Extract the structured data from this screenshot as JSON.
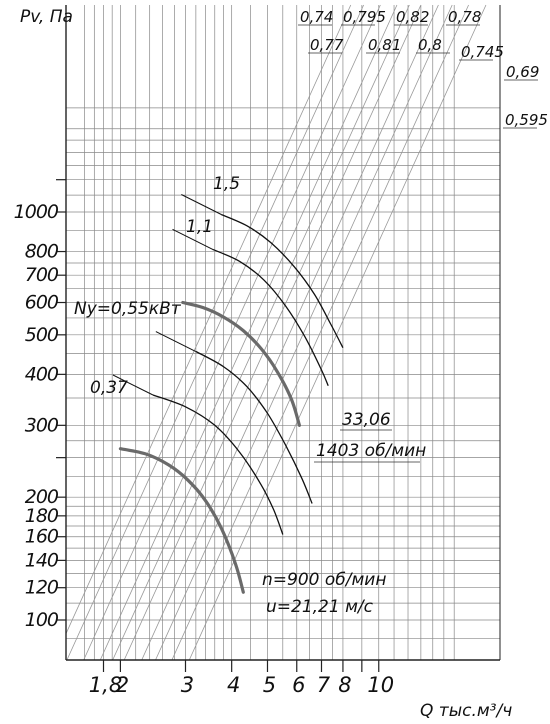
{
  "chart_data": {
    "type": "line",
    "title": "",
    "ylabel": "Pv, Па",
    "xlabel": "Q тыс.м³/ч",
    "x_scale": "log",
    "y_scale": "log",
    "xlim": [
      1.4,
      17
    ],
    "ylim": [
      74,
      2000
    ],
    "grid": true,
    "y_ticks": [
      {
        "value": 100,
        "label": "100"
      },
      {
        "value": 120,
        "label": "120"
      },
      {
        "value": 140,
        "label": "140"
      },
      {
        "value": 160,
        "label": "160"
      },
      {
        "value": 180,
        "label": "180"
      },
      {
        "value": 200,
        "label": "200"
      },
      {
        "value": 300,
        "label": "300"
      },
      {
        "value": 400,
        "label": "400"
      },
      {
        "value": 500,
        "label": "500"
      },
      {
        "value": 600,
        "label": "600"
      },
      {
        "value": 700,
        "label": "700"
      },
      {
        "value": 800,
        "label": "800"
      },
      {
        "value": 1000,
        "label": "1000"
      }
    ],
    "x_ticks": [
      {
        "value": 1.8,
        "label": "1,8"
      },
      {
        "value": 2,
        "label": "2"
      },
      {
        "value": 3,
        "label": "3"
      },
      {
        "value": 4,
        "label": "4"
      },
      {
        "value": 5,
        "label": "5"
      },
      {
        "value": 6,
        "label": "6"
      },
      {
        "value": 7,
        "label": "7"
      },
      {
        "value": 8,
        "label": "8"
      },
      {
        "value": 10,
        "label": "10"
      }
    ],
    "efficiency_lines": [
      {
        "label": "0,74",
        "q_at_top": 8.4
      },
      {
        "label": "0,77",
        "q_at_top": 9.1
      },
      {
        "label": "0,795",
        "q_at_top": 10.1
      },
      {
        "label": "0,81",
        "q_at_top": 11.2
      },
      {
        "label": "0,82",
        "q_at_top": 12.1
      },
      {
        "label": "0,8",
        "q_at_top": 13.0
      },
      {
        "label": "0,78",
        "q_at_top": 14.5
      },
      {
        "label": "0,745",
        "q_at_top": 15.8
      },
      {
        "label": "0,69",
        "q_at_top": 17.5
      },
      {
        "label": "0,595",
        "q_at_top": 19.5
      }
    ],
    "speed_curves": [
      {
        "name": "n=900 об/мин",
        "label": "n=900 об/мин",
        "sub_label": "u=21,21 м/с",
        "points": [
          [
            2.0,
            263
          ],
          [
            2.35,
            255
          ],
          [
            2.7,
            240
          ],
          [
            3.05,
            220
          ],
          [
            3.4,
            196
          ],
          [
            3.75,
            168
          ],
          [
            4.1,
            137
          ],
          [
            4.3,
            117
          ]
        ]
      },
      {
        "name": "1403 об/мин",
        "label": "1403 об/мин",
        "sub_label": "33,06",
        "points": [
          [
            2.95,
            600
          ],
          [
            3.35,
            583
          ],
          [
            3.8,
            553
          ],
          [
            4.3,
            512
          ],
          [
            4.8,
            463
          ],
          [
            5.3,
            408
          ],
          [
            5.8,
            348
          ],
          [
            6.1,
            300
          ]
        ]
      }
    ],
    "power_curves": [
      {
        "name": "0,37",
        "label": "0,37",
        "points": [
          [
            2.45,
            356
          ],
          [
            3.0,
            333
          ],
          [
            3.6,
            300
          ],
          [
            4.2,
            258
          ],
          [
            4.8,
            215
          ],
          [
            5.2,
            186
          ],
          [
            5.5,
            162
          ]
        ]
      },
      {
        "name": "Ny=0,55кВт",
        "label": "Ny=0,55кВт",
        "points": [
          [
            3.2,
            455
          ],
          [
            3.8,
            418
          ],
          [
            4.4,
            373
          ],
          [
            5.0,
            321
          ],
          [
            5.6,
            268
          ],
          [
            6.2,
            222
          ],
          [
            6.6,
            193
          ]
        ]
      },
      {
        "name": "1,1",
        "label": "1,1",
        "points": [
          [
            3.55,
            810
          ],
          [
            4.2,
            757
          ],
          [
            4.9,
            680
          ],
          [
            5.6,
            588
          ],
          [
            6.3,
            496
          ],
          [
            7.0,
            410
          ],
          [
            7.3,
            375
          ]
        ]
      },
      {
        "name": "1,5",
        "label": "1,5",
        "points": [
          [
            3.75,
            986
          ],
          [
            4.4,
            925
          ],
          [
            5.1,
            842
          ],
          [
            5.9,
            735
          ],
          [
            6.7,
            628
          ],
          [
            7.4,
            533
          ],
          [
            8.0,
            465
          ]
        ]
      }
    ],
    "colors": {
      "grid": "#888888",
      "axis": "#222222",
      "power": "#111111",
      "speed": "#6a6a6a",
      "efficiency": "#999999"
    }
  }
}
